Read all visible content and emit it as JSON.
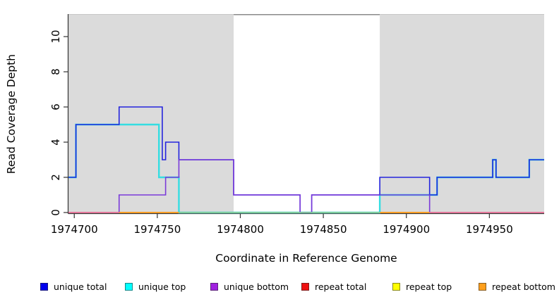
{
  "axes": {
    "x_label": "Coordinate in Reference Genome",
    "y_label": "Read Coverage Depth",
    "x_tick_values": [
      1974700,
      1974750,
      1974800,
      1974850,
      1974900,
      1974950
    ],
    "x_tick_labels": [
      "1974700",
      "1974750",
      "1974800",
      "1974850",
      "1974900",
      "1974950"
    ],
    "y_tick_values": [
      0,
      2,
      4,
      6,
      8,
      10
    ],
    "y_tick_labels": [
      "0",
      "2",
      "4",
      "6",
      "8",
      "10"
    ]
  },
  "chart_data": {
    "type": "line",
    "step": true,
    "title": "",
    "xlabel": "Coordinate in Reference Genome",
    "ylabel": "Read Coverage Depth",
    "xlim": [
      1974696.5,
      1974983
    ],
    "ylim": [
      0,
      11.3
    ],
    "grid": false,
    "legend_position": "bottom",
    "regions": [
      {
        "kind": "shaded",
        "x": [
          1974696.5,
          1974796
        ],
        "color": "#dbdbdb"
      },
      {
        "kind": "gap",
        "x": [
          1974796,
          1974884
        ],
        "color": "#ffffff",
        "top_line_color": "#8a8a8a"
      },
      {
        "kind": "shaded",
        "x": [
          1974884,
          1974983
        ],
        "color": "#dbdbdb"
      }
    ],
    "series": [
      {
        "name": "repeat total",
        "color": "#dd1111",
        "width": 1.2,
        "segments": [
          [
            1974696.5,
            1974983,
            0
          ]
        ]
      },
      {
        "name": "repeat top",
        "color": "#f5f500",
        "width": 1.2,
        "segments": [
          [
            1974696.5,
            1974983,
            0
          ]
        ]
      },
      {
        "name": "repeat bottom",
        "color": "#ff9d1f",
        "width": 1.2,
        "segments": [
          [
            1974696.5,
            1974983,
            0
          ]
        ]
      },
      {
        "name": "unique top",
        "color": "#35dde2",
        "width": 2.4,
        "segments": [
          [
            1974696.5,
            1974701,
            2
          ],
          [
            1974701,
            1974751,
            5
          ],
          [
            1974751,
            1974763,
            2
          ],
          [
            1974763,
            1974884,
            0
          ],
          [
            1974884,
            1974918.5,
            1
          ],
          [
            1974918.5,
            1974952,
            2
          ],
          [
            1974952,
            1974954,
            3
          ],
          [
            1974954,
            1974974,
            2
          ],
          [
            1974974,
            1974983,
            3
          ]
        ]
      },
      {
        "name": "unique total",
        "color": "#2424dd",
        "width": 1.6,
        "segments": [
          [
            1974696.5,
            1974701,
            2
          ],
          [
            1974701,
            1974727,
            5
          ],
          [
            1974727,
            1974753,
            6
          ],
          [
            1974753,
            1974755,
            3
          ],
          [
            1974755,
            1974763,
            4
          ],
          [
            1974763,
            1974796,
            3
          ],
          [
            1974796,
            1974836,
            1
          ],
          [
            1974836,
            1974843,
            0
          ],
          [
            1974843,
            1974884,
            1
          ],
          [
            1974884,
            1974914,
            2
          ],
          [
            1974914,
            1974918.5,
            1
          ],
          [
            1974918.5,
            1974952,
            2
          ],
          [
            1974952,
            1974954,
            3
          ],
          [
            1974954,
            1974974,
            2
          ],
          [
            1974974,
            1974983,
            3
          ]
        ]
      },
      {
        "name": "unique bottom",
        "color": "#7a3bd9",
        "width": 1.6,
        "segments": [
          [
            1974696.5,
            1974727,
            0
          ],
          [
            1974727,
            1974755,
            1
          ],
          [
            1974755,
            1974763,
            2
          ],
          [
            1974763,
            1974796,
            3
          ],
          [
            1974796,
            1974836,
            1
          ],
          [
            1974836,
            1974843,
            0
          ],
          [
            1974843,
            1974914,
            1
          ],
          [
            1974914,
            1974983,
            0
          ]
        ]
      }
    ],
    "baseline_segments": [
      {
        "x": [
          1974696.5,
          1974727
        ],
        "color": "#ed7a9c"
      },
      {
        "x": [
          1974727,
          1974763
        ],
        "color": "#ff9d1f"
      },
      {
        "x": [
          1974763,
          1974884
        ],
        "color": "#8bcb94"
      },
      {
        "x": [
          1974884,
          1974914
        ],
        "color": "#ff9d1f"
      },
      {
        "x": [
          1974914,
          1974983
        ],
        "color": "#ed7a9c"
      }
    ]
  },
  "legend": {
    "items": [
      {
        "label": "unique total",
        "color": "#0000ee"
      },
      {
        "label": "unique top",
        "color": "#00ffff"
      },
      {
        "label": "unique bottom",
        "color": "#a021e0"
      },
      {
        "label": "repeat total",
        "color": "#ee1111"
      },
      {
        "label": "repeat top",
        "color": "#ffff00"
      },
      {
        "label": "repeat bottom",
        "color": "#ff9f1c"
      }
    ]
  }
}
